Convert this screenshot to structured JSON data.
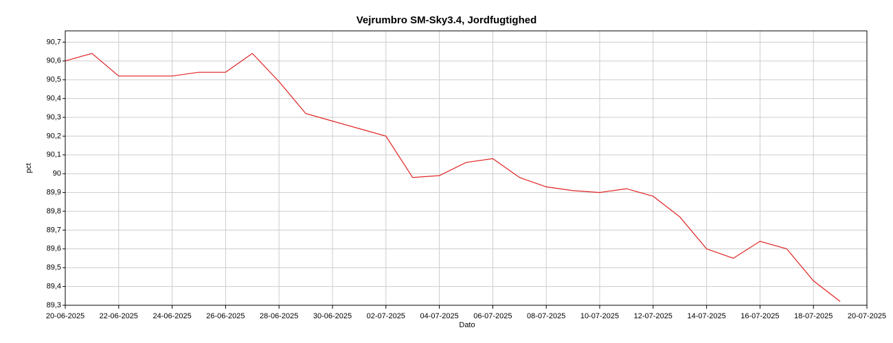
{
  "chart_data": {
    "type": "line",
    "title": "Vejrumbro SM-Sky3.4, Jordfugtighed",
    "x_label": "Dato",
    "y_label": "pct",
    "x": [
      "20-06-2025",
      "21-06-2025",
      "22-06-2025",
      "23-06-2025",
      "24-06-2025",
      "25-06-2025",
      "26-06-2025",
      "27-06-2025",
      "28-06-2025",
      "29-06-2025",
      "30-06-2025",
      "01-07-2025",
      "02-07-2025",
      "03-07-2025",
      "04-07-2025",
      "05-07-2025",
      "06-07-2025",
      "07-07-2025",
      "08-07-2025",
      "09-07-2025",
      "10-07-2025",
      "11-07-2025",
      "12-07-2025",
      "13-07-2025",
      "14-07-2025",
      "15-07-2025",
      "16-07-2025",
      "17-07-2025",
      "18-07-2025",
      "19-07-2025"
    ],
    "series": [
      {
        "color": "#e02020",
        "values": [
          90.6,
          90.64,
          90.52,
          90.52,
          90.52,
          90.54,
          90.54,
          90.64,
          90.49,
          90.32,
          90.28,
          90.24,
          90.2,
          89.98,
          89.99,
          90.06,
          90.08,
          89.98,
          89.93,
          89.91,
          89.9,
          89.92,
          89.88,
          89.77,
          89.6,
          89.55,
          89.64,
          89.6,
          89.43,
          89.32
        ]
      }
    ],
    "xlim": [
      "20-06-2025",
      "20-07-2025"
    ],
    "xticks": [
      "20-06-2025",
      "22-06-2025",
      "24-06-2025",
      "26-06-2025",
      "28-06-2025",
      "30-06-2025",
      "02-07-2025",
      "04-07-2025",
      "06-07-2025",
      "08-07-2025",
      "10-07-2025",
      "12-07-2025",
      "14-07-2025",
      "16-07-2025",
      "18-07-2025",
      "20-07-2025"
    ],
    "ylim": [
      89.3,
      90.76
    ],
    "yticks": [
      {
        "value": 89.3,
        "label": "89,3"
      },
      {
        "value": 89.4,
        "label": "89,4"
      },
      {
        "value": 89.5,
        "label": "89,5"
      },
      {
        "value": 89.6,
        "label": "89,6"
      },
      {
        "value": 89.7,
        "label": "89,7"
      },
      {
        "value": 89.8,
        "label": "89,8"
      },
      {
        "value": 89.9,
        "label": "89,9"
      },
      90,
      {
        "value": 90.1,
        "label": "90,1"
      },
      {
        "value": 90.2,
        "label": "90,2"
      },
      {
        "value": 90.3,
        "label": "90,3"
      },
      {
        "value": 90.4,
        "label": "90,4"
      },
      {
        "value": 90.5,
        "label": "90,5"
      },
      {
        "value": 90.6,
        "label": "90,6"
      },
      {
        "value": 90.7,
        "label": "90,7"
      }
    ],
    "grid": true
  }
}
